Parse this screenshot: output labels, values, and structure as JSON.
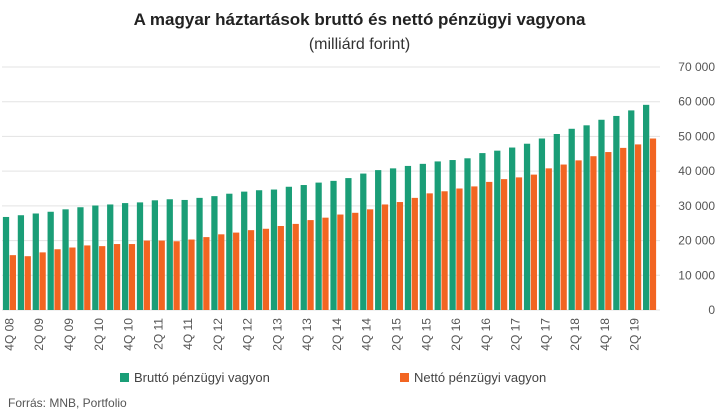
{
  "chart_data": {
    "type": "bar",
    "title": "A magyar háztartások bruttó és nettó pénzügyi vagyona",
    "subtitle": "(milliárd forint)",
    "x": [
      "4Q 08",
      "1Q 09",
      "2Q 09",
      "3Q 09",
      "4Q 09",
      "1Q 10",
      "2Q 10",
      "3Q 10",
      "4Q 10",
      "1Q 11",
      "2Q 11",
      "3Q 11",
      "4Q 11",
      "1Q 12",
      "2Q 12",
      "3Q 12",
      "4Q 12",
      "1Q 13",
      "2Q 13",
      "3Q 13",
      "4Q 13",
      "1Q 14",
      "2Q 14",
      "3Q 14",
      "4Q 14",
      "1Q 15",
      "2Q 15",
      "3Q 15",
      "4Q 15",
      "1Q 16",
      "2Q 16",
      "3Q 16",
      "4Q 16",
      "1Q 17",
      "2Q 17",
      "3Q 17",
      "4Q 17",
      "1Q 18",
      "2Q 18",
      "3Q 18",
      "4Q 18",
      "1Q 19",
      "2Q 19",
      "3Q 19"
    ],
    "x_tick_labels": [
      "4Q 08",
      "2Q 09",
      "4Q 09",
      "2Q 10",
      "4Q 10",
      "2Q 11",
      "4Q 11",
      "2Q 12",
      "4Q 12",
      "2Q 13",
      "4Q 13",
      "2Q 14",
      "4Q 14",
      "2Q 15",
      "4Q 15",
      "2Q 16",
      "4Q 16",
      "2Q 17",
      "4Q 17",
      "2Q 18",
      "4Q 18",
      "2Q 19"
    ],
    "series": [
      {
        "name": "Bruttó pénzügyi vagyon",
        "color": "#1a9e77",
        "values": [
          26800,
          27300,
          27800,
          28300,
          29000,
          29600,
          30100,
          30400,
          30800,
          31000,
          31600,
          31900,
          31700,
          32300,
          32800,
          33500,
          34100,
          34500,
          34700,
          35500,
          36000,
          36700,
          37200,
          38000,
          39300,
          40300,
          40800,
          41500,
          42100,
          42800,
          43200,
          43700,
          45200,
          45900,
          46800,
          47900,
          49400,
          50700,
          52200,
          53200,
          54800,
          55900,
          57500,
          59100
        ],
        "ylabels_side": "right"
      },
      {
        "name": "Nettó pénzügyi vagyon",
        "color": "#f26522",
        "values": [
          15800,
          15500,
          16600,
          17500,
          18000,
          18600,
          18400,
          19000,
          19000,
          20000,
          20000,
          19800,
          20300,
          21000,
          21800,
          22300,
          23000,
          23400,
          24200,
          24800,
          25900,
          26600,
          27500,
          28000,
          29000,
          30400,
          31100,
          32300,
          33600,
          34200,
          35000,
          35600,
          36900,
          37700,
          38200,
          39000,
          40800,
          41900,
          43100,
          44300,
          45500,
          46700,
          47700,
          49400
        ]
      }
    ],
    "ylim": [
      0,
      70000
    ],
    "yticks": [
      "0",
      "10 000",
      "20 000",
      "30 000",
      "40 000",
      "50 000",
      "60 000",
      "70 000"
    ],
    "grid": true,
    "legend": "bottom"
  },
  "source": "Forrás: MNB, Portfolio"
}
